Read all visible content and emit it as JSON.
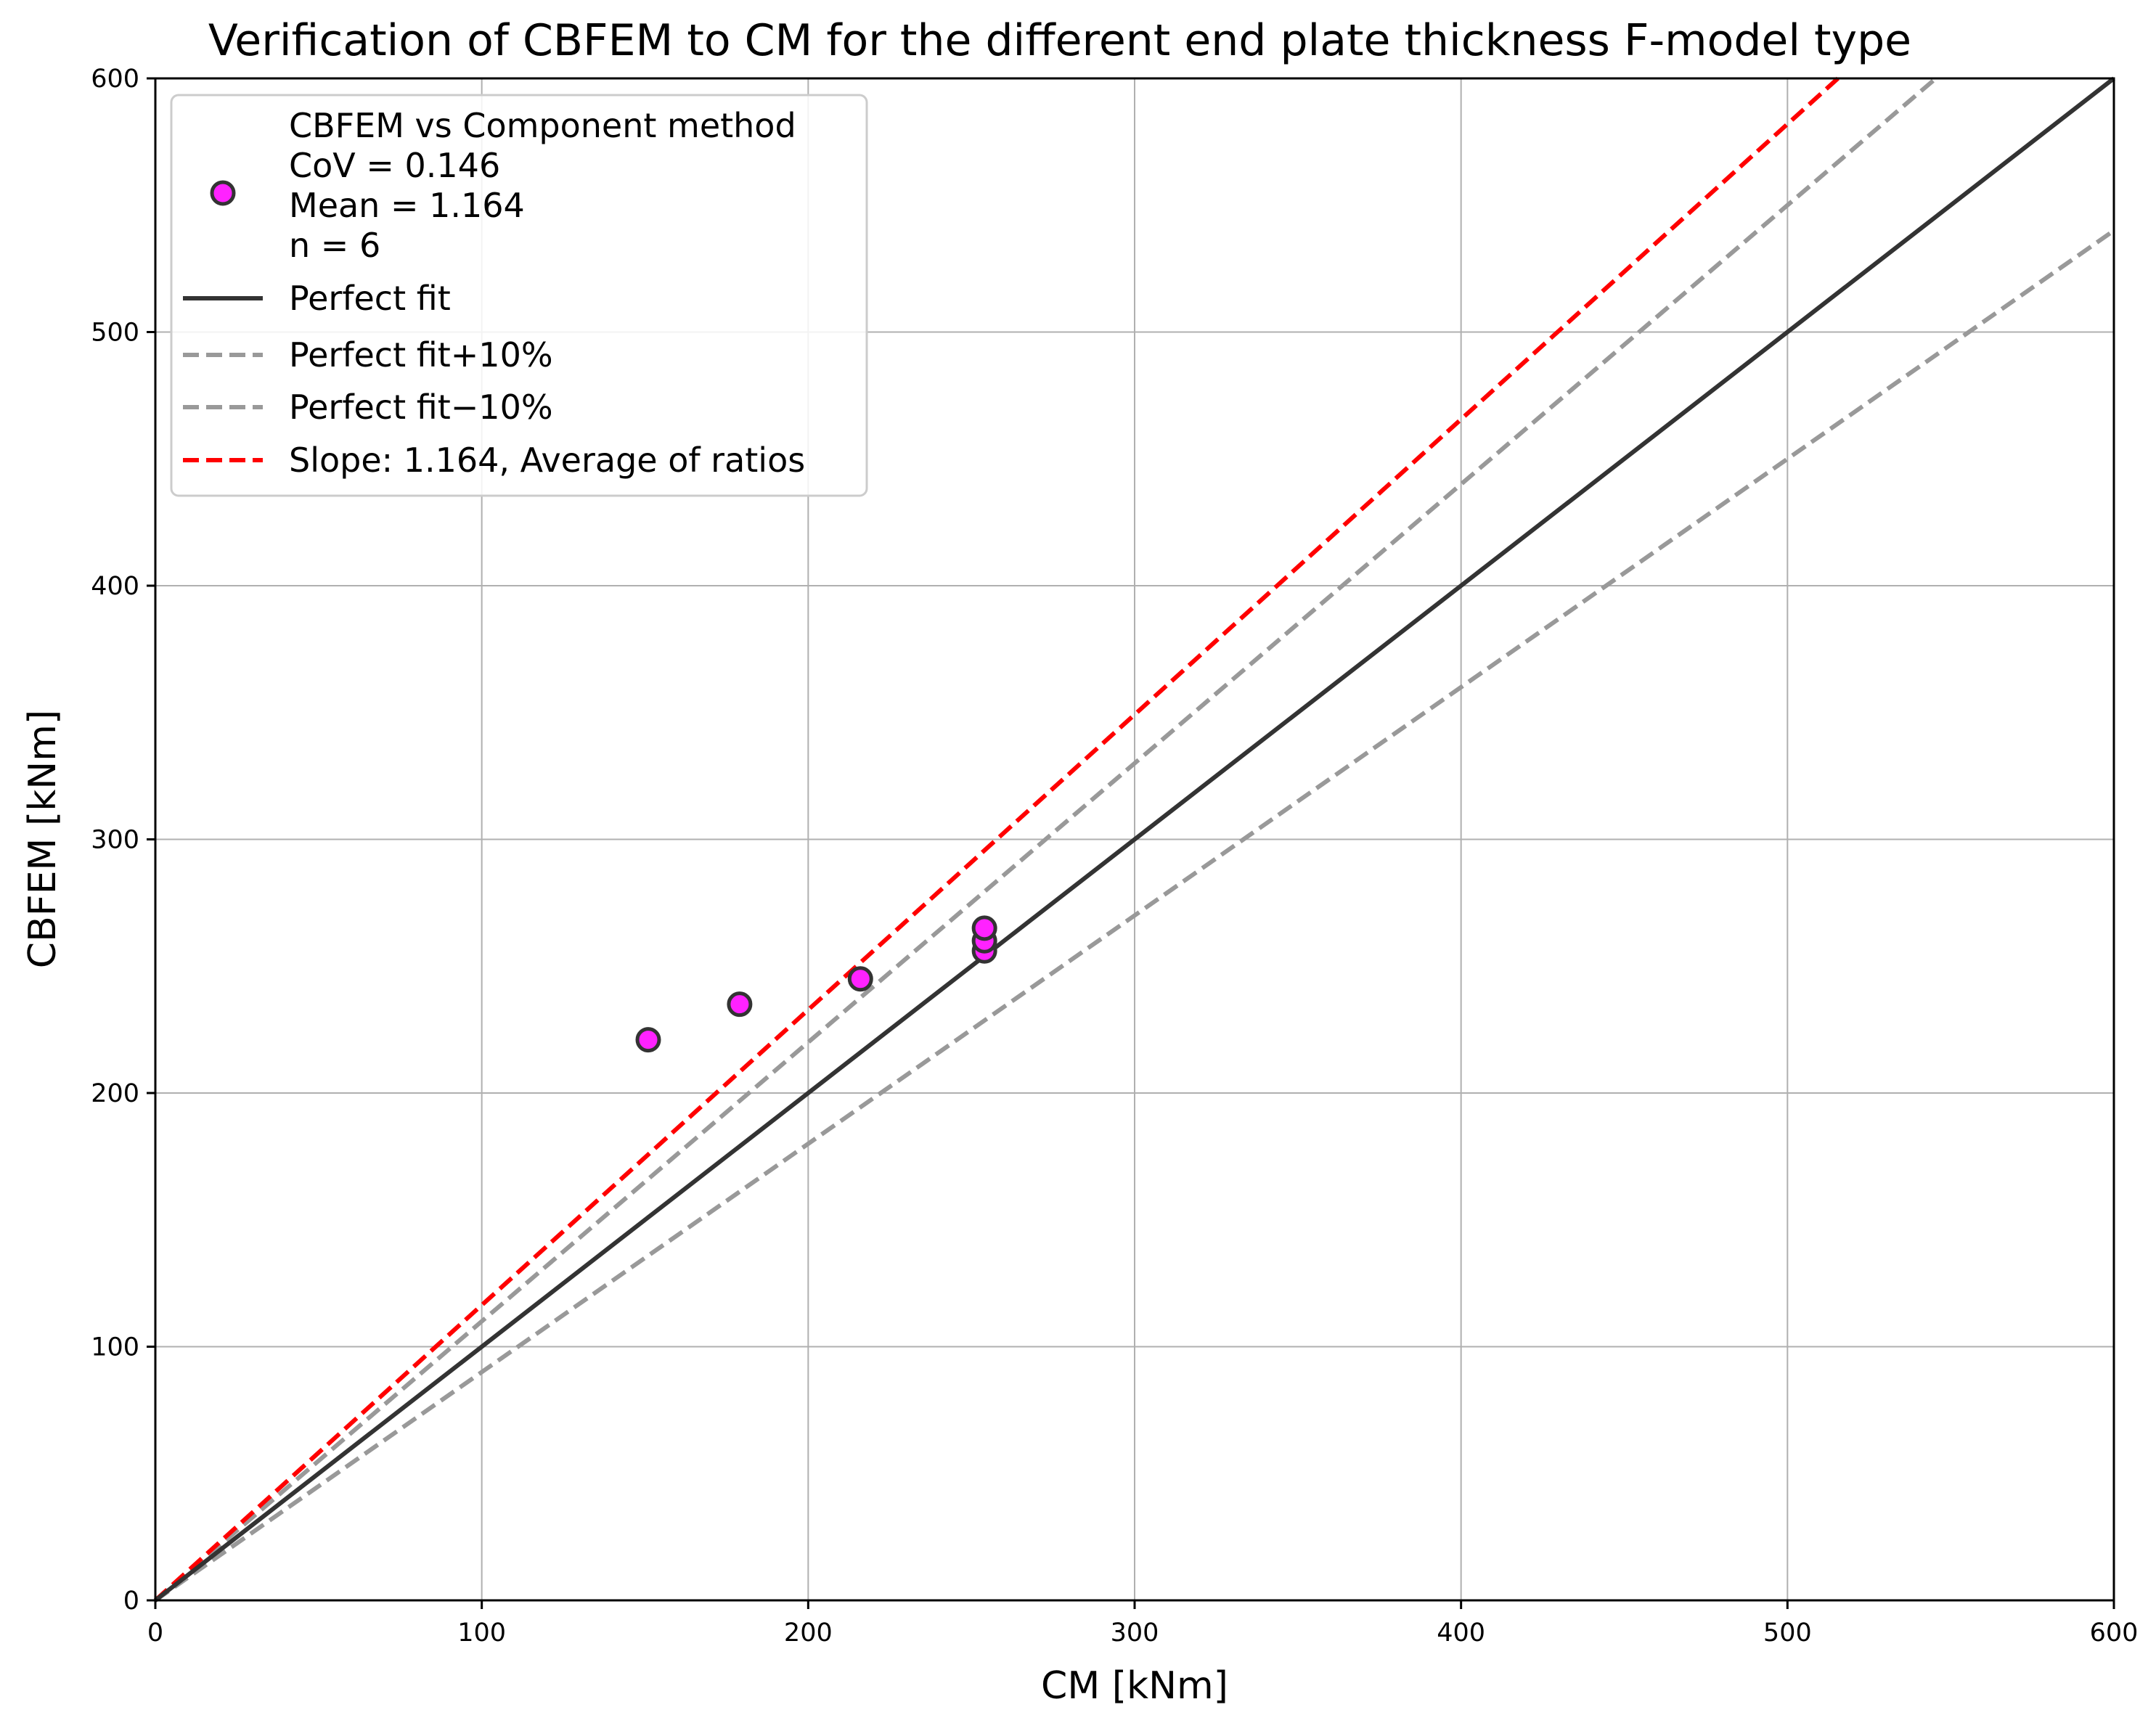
{
  "chart_data": {
    "type": "scatter",
    "title": "Verification of CBFEM to CM for the different end plate thickness F-model type",
    "xlabel": "CM [kNm]",
    "ylabel": "CBFEM [kNm]",
    "xlim": [
      0,
      600
    ],
    "ylim": [
      0,
      600
    ],
    "xticks": [
      0,
      100,
      200,
      300,
      400,
      500,
      600
    ],
    "yticks": [
      0,
      100,
      200,
      300,
      400,
      500,
      600
    ],
    "grid": true,
    "legend_position": "top-left",
    "points": {
      "x": [
        151,
        179,
        216,
        254,
        254,
        254
      ],
      "y": [
        221,
        235,
        245,
        256,
        260,
        265
      ],
      "color": "#ff22ff",
      "edge_color": "#333333"
    },
    "scatter_legend_lines": [
      "CBFEM vs Component method",
      "CoV = 0.146",
      "Mean = 1.164",
      "n = 6"
    ],
    "lines": [
      {
        "name": "Perfect fit",
        "slope": 1.0,
        "color": "#333333",
        "style": "solid"
      },
      {
        "name": "Perfect fit+10%",
        "slope": 1.1,
        "color": "#999999",
        "style": "dashed"
      },
      {
        "name": "Perfect fit−10%",
        "slope": 0.9,
        "color": "#999999",
        "style": "dashed"
      },
      {
        "name": "Slope: 1.164, Average of ratios",
        "slope": 1.164,
        "color": "#ff0000",
        "style": "dashed"
      }
    ]
  }
}
